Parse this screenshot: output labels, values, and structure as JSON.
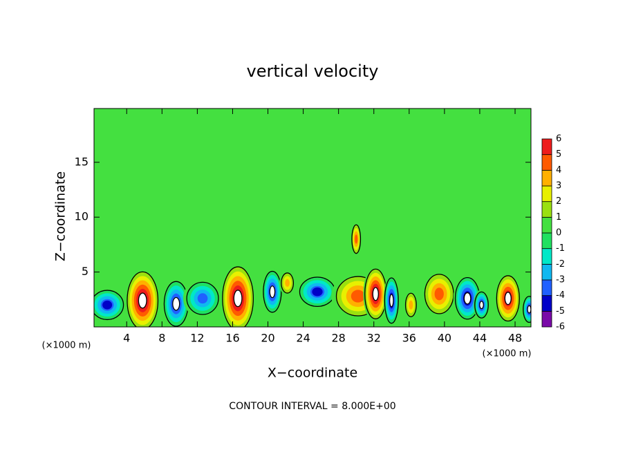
{
  "chart_data": {
    "type": "contour",
    "title": "vertical velocity",
    "x_label": "X−coordinate",
    "y_label": "Z−coordinate",
    "x_unit": "(×1000 m)",
    "x_unit_right": "(×1000 m)",
    "footer": "CONTOUR INTERVAL = 8.000E+00",
    "xlim": [
      0.3,
      49.8
    ],
    "ylim": [
      0,
      19.9
    ],
    "xticks": [
      4,
      8,
      12,
      16,
      20,
      24,
      28,
      32,
      36,
      40,
      44,
      48
    ],
    "yticks": [
      5,
      10,
      15
    ],
    "colorbar": {
      "levels": [
        -6,
        -5,
        -4,
        -3,
        -2,
        -1,
        0,
        1,
        2,
        3,
        4,
        5,
        6
      ],
      "colors": [
        "#7a0aa8",
        "#0000c8",
        "#2060ff",
        "#10b8f0",
        "#00e8c8",
        "#20e060",
        "#44e040",
        "#9ae010",
        "#e8f000",
        "#ffb000",
        "#ff5a00",
        "#ee1c1c"
      ],
      "top_color": "#f6a0a0"
    },
    "cells": [
      {
        "x": 5.8,
        "z": 2.4,
        "dx": 2.0,
        "dz": 3.0,
        "value": 6
      },
      {
        "x": 1.8,
        "z": 2.0,
        "dx": 2.2,
        "dz": 1.6,
        "value": -4.5
      },
      {
        "x": 9.6,
        "z": 2.1,
        "dx": 1.6,
        "dz": 2.4,
        "value": -5
      },
      {
        "x": 12.6,
        "z": 2.6,
        "dx": 2.2,
        "dz": 1.8,
        "value": -4
      },
      {
        "x": 16.6,
        "z": 2.6,
        "dx": 2.0,
        "dz": 3.3,
        "value": 6
      },
      {
        "x": 20.5,
        "z": 3.2,
        "dx": 1.2,
        "dz": 2.2,
        "value": -5
      },
      {
        "x": 22.2,
        "z": 4.0,
        "dx": 0.9,
        "dz": 1.2,
        "value": 3
      },
      {
        "x": 25.6,
        "z": 3.2,
        "dx": 2.4,
        "dz": 1.6,
        "value": -4.5
      },
      {
        "x": 30.2,
        "z": 2.8,
        "dx": 3.0,
        "dz": 2.2,
        "value": 4
      },
      {
        "x": 32.2,
        "z": 3.0,
        "dx": 1.4,
        "dz": 2.6,
        "value": 6
      },
      {
        "x": 30.0,
        "z": 8.0,
        "dx": 0.6,
        "dz": 1.6,
        "value": 4
      },
      {
        "x": 34.0,
        "z": 2.4,
        "dx": 0.9,
        "dz": 2.4,
        "value": -5.5
      },
      {
        "x": 36.2,
        "z": 2.0,
        "dx": 0.8,
        "dz": 1.4,
        "value": 3
      },
      {
        "x": 39.4,
        "z": 3.0,
        "dx": 2.0,
        "dz": 2.2,
        "value": 4
      },
      {
        "x": 42.6,
        "z": 2.6,
        "dx": 1.6,
        "dz": 2.2,
        "value": -5.5
      },
      {
        "x": 44.2,
        "z": 2.0,
        "dx": 0.9,
        "dz": 1.4,
        "value": -5
      },
      {
        "x": 47.2,
        "z": 2.6,
        "dx": 1.5,
        "dz": 2.4,
        "value": 5.5
      },
      {
        "x": 49.6,
        "z": 1.6,
        "dx": 0.8,
        "dz": 1.4,
        "value": -5
      }
    ]
  }
}
